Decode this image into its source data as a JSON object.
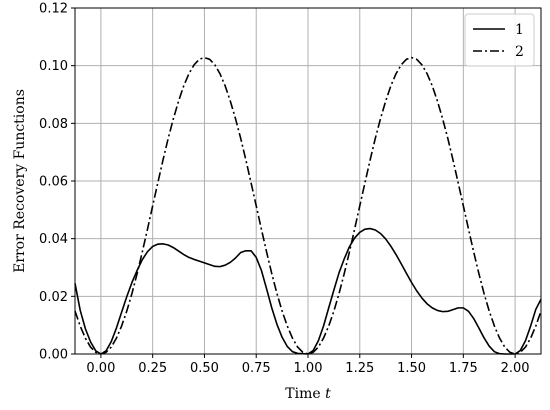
{
  "chart_data": {
    "type": "line",
    "title": "",
    "xlabel": "Time",
    "xlabel_symbol": "t",
    "ylabel": "Error Recovery Functions",
    "xlim": [
      -0.125,
      2.125
    ],
    "ylim": [
      0,
      0.12
    ],
    "xticks": [
      0.0,
      0.25,
      0.5,
      0.75,
      1.0,
      1.25,
      1.5,
      1.75,
      2.0
    ],
    "xtick_labels": [
      "0.00",
      "0.25",
      "0.50",
      "0.75",
      "1.00",
      "1.25",
      "1.50",
      "1.75",
      "2.00"
    ],
    "yticks": [
      0.0,
      0.02,
      0.04,
      0.06,
      0.08,
      0.1,
      0.12
    ],
    "ytick_labels": [
      "0.00",
      "0.02",
      "0.04",
      "0.06",
      "0.08",
      "0.10",
      "0.12"
    ],
    "grid": true,
    "legend_position": "top-right",
    "series": [
      {
        "name": "1",
        "style": "solid",
        "color": "#000000",
        "x": [
          -0.125,
          -0.1,
          -0.075,
          -0.05,
          -0.025,
          0.0,
          0.025,
          0.05,
          0.075,
          0.1,
          0.125,
          0.15,
          0.175,
          0.2,
          0.225,
          0.25,
          0.275,
          0.3,
          0.325,
          0.35,
          0.375,
          0.4,
          0.425,
          0.45,
          0.475,
          0.5,
          0.525,
          0.55,
          0.575,
          0.6,
          0.625,
          0.65,
          0.675,
          0.7,
          0.725,
          0.75,
          0.775,
          0.8,
          0.825,
          0.85,
          0.875,
          0.9,
          0.925,
          0.95,
          0.975,
          1.0,
          1.025,
          1.05,
          1.075,
          1.1,
          1.125,
          1.15,
          1.175,
          1.2,
          1.225,
          1.25,
          1.275,
          1.3,
          1.325,
          1.35,
          1.375,
          1.4,
          1.425,
          1.45,
          1.475,
          1.5,
          1.525,
          1.55,
          1.575,
          1.6,
          1.625,
          1.65,
          1.675,
          1.7,
          1.725,
          1.75,
          1.775,
          1.8,
          1.825,
          1.85,
          1.875,
          1.9,
          1.925,
          1.95,
          1.975,
          2.0,
          2.025,
          2.05,
          2.075,
          2.1,
          2.125
        ],
        "y": [
          0.0245,
          0.0152,
          0.0088,
          0.0042,
          0.0011,
          0.0,
          0.0011,
          0.0043,
          0.009,
          0.0145,
          0.0199,
          0.0248,
          0.029,
          0.0327,
          0.0355,
          0.0373,
          0.0381,
          0.0382,
          0.0378,
          0.0369,
          0.0357,
          0.0345,
          0.0335,
          0.0328,
          0.0322,
          0.0316,
          0.031,
          0.0304,
          0.0303,
          0.0308,
          0.0318,
          0.0333,
          0.0352,
          0.0358,
          0.0358,
          0.0335,
          0.029,
          0.0226,
          0.016,
          0.0103,
          0.0058,
          0.0026,
          0.0008,
          0.0002,
          0.0001,
          0.0,
          0.0012,
          0.0046,
          0.0097,
          0.016,
          0.0222,
          0.0282,
          0.033,
          0.0372,
          0.0402,
          0.0422,
          0.0433,
          0.0435,
          0.043,
          0.0418,
          0.0399,
          0.0374,
          0.0345,
          0.0313,
          0.028,
          0.0248,
          0.0219,
          0.0194,
          0.0174,
          0.016,
          0.0151,
          0.0147,
          0.0148,
          0.0154,
          0.016,
          0.016,
          0.0148,
          0.0123,
          0.009,
          0.0056,
          0.0027,
          0.0008,
          0.0001,
          0.0,
          0.0,
          0.0,
          0.0012,
          0.0046,
          0.0097,
          0.0155,
          0.019
        ]
      },
      {
        "name": "2",
        "style": "dashdot",
        "color": "#000000",
        "x": [
          -0.125,
          -0.1,
          -0.075,
          -0.05,
          -0.025,
          0.0,
          0.025,
          0.05,
          0.075,
          0.1,
          0.125,
          0.15,
          0.175,
          0.2,
          0.225,
          0.25,
          0.275,
          0.3,
          0.325,
          0.35,
          0.375,
          0.4,
          0.425,
          0.45,
          0.475,
          0.5,
          0.525,
          0.55,
          0.575,
          0.6,
          0.625,
          0.65,
          0.675,
          0.7,
          0.725,
          0.75,
          0.775,
          0.8,
          0.825,
          0.85,
          0.875,
          0.9,
          0.925,
          0.95,
          0.975,
          1.0,
          1.025,
          1.05,
          1.075,
          1.1,
          1.125,
          1.15,
          1.175,
          1.2,
          1.225,
          1.25,
          1.275,
          1.3,
          1.325,
          1.35,
          1.375,
          1.4,
          1.425,
          1.45,
          1.475,
          1.5,
          1.525,
          1.55,
          1.575,
          1.6,
          1.625,
          1.65,
          1.675,
          1.7,
          1.725,
          1.75,
          1.775,
          1.8,
          1.825,
          1.85,
          1.875,
          1.9,
          1.925,
          1.95,
          1.975,
          2.0,
          2.025,
          2.05,
          2.075,
          2.1,
          2.125
        ],
        "y": [
          0.0149,
          0.0097,
          0.0055,
          0.0024,
          0.0006,
          0.0,
          0.0006,
          0.0024,
          0.0055,
          0.0097,
          0.0149,
          0.021,
          0.0279,
          0.0354,
          0.0433,
          0.0514,
          0.0594,
          0.0673,
          0.0748,
          0.0816,
          0.0877,
          0.093,
          0.0972,
          0.1003,
          0.1022,
          0.1028,
          0.1022,
          0.1003,
          0.0972,
          0.093,
          0.0877,
          0.0816,
          0.0748,
          0.0673,
          0.0594,
          0.0514,
          0.0433,
          0.0354,
          0.0279,
          0.021,
          0.0149,
          0.0097,
          0.0055,
          0.0024,
          0.0006,
          0.0,
          0.0006,
          0.0024,
          0.0055,
          0.0097,
          0.0149,
          0.021,
          0.0279,
          0.0354,
          0.0433,
          0.0514,
          0.0594,
          0.0673,
          0.0748,
          0.0816,
          0.0877,
          0.093,
          0.0972,
          0.1003,
          0.1022,
          0.1028,
          0.1022,
          0.1003,
          0.0972,
          0.093,
          0.0877,
          0.0816,
          0.0748,
          0.0673,
          0.0594,
          0.0514,
          0.0433,
          0.0354,
          0.0279,
          0.021,
          0.0149,
          0.0097,
          0.0055,
          0.0024,
          0.0006,
          0.0,
          0.0006,
          0.0024,
          0.0055,
          0.0097,
          0.0149
        ]
      }
    ]
  }
}
